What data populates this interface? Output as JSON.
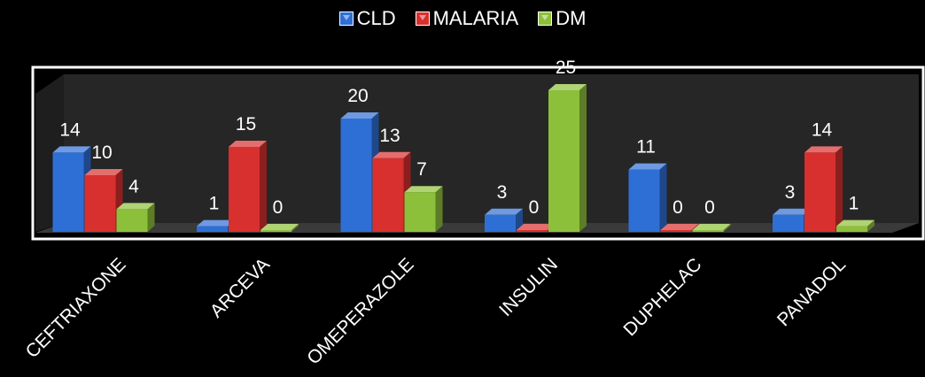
{
  "chart_data": {
    "type": "bar",
    "categories": [
      "CEFTRIAXONE",
      "ARCEVA",
      "OMEPERAZOLE",
      "INSULIN",
      "DUPHELAC",
      "PANADOL"
    ],
    "series": [
      {
        "name": "CLD",
        "values": [
          14,
          1,
          20,
          3,
          11,
          3
        ],
        "color": "#2E6FD6"
      },
      {
        "name": "MALARIA",
        "values": [
          10,
          15,
          13,
          0,
          0,
          14
        ],
        "color": "#D8302E"
      },
      {
        "name": "DM",
        "values": [
          4,
          0,
          7,
          25,
          0,
          1
        ],
        "color": "#8DC03A"
      }
    ],
    "ylim": [
      0,
      25
    ],
    "grid": false,
    "legend_position": "top",
    "background_color": "#000000",
    "wall_color": "#262626"
  }
}
